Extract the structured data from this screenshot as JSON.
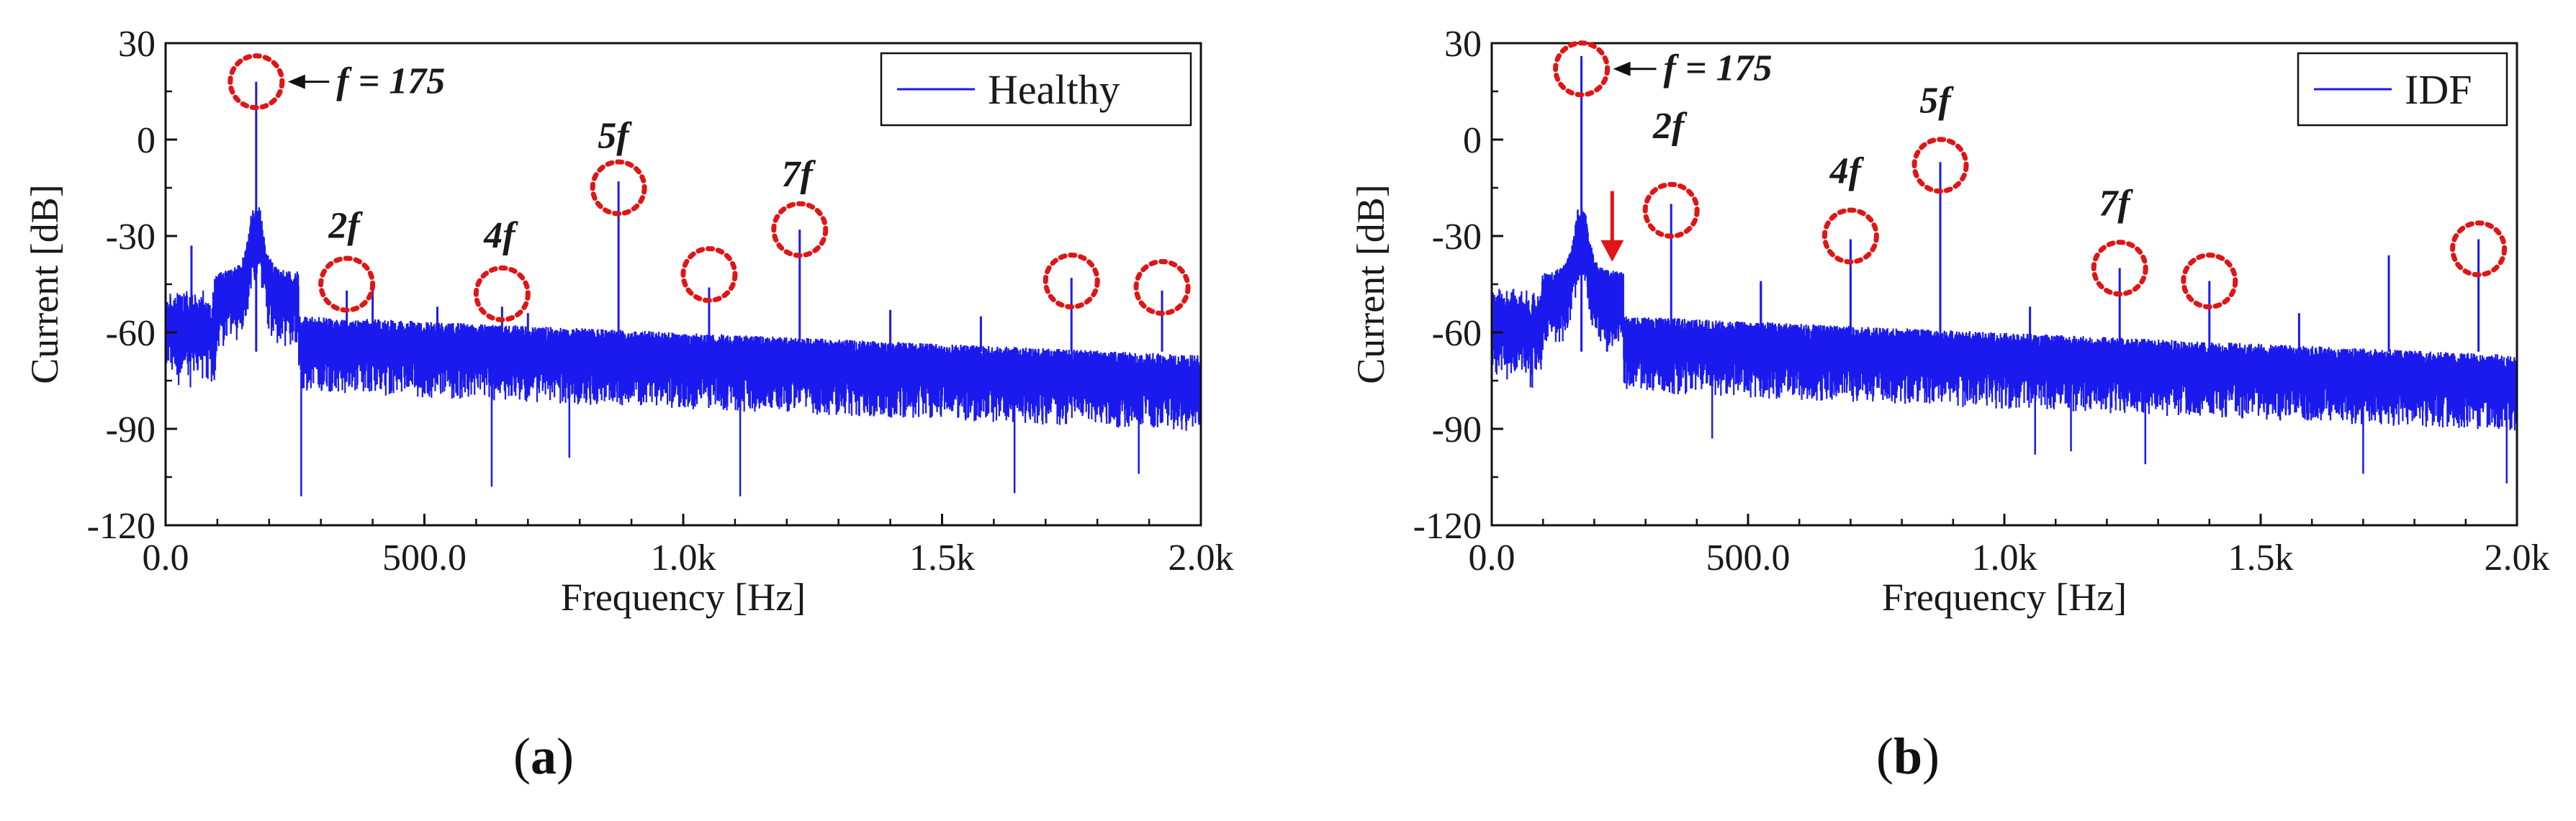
{
  "colors": {
    "trace": "#1a1aee",
    "circle": "#e01515",
    "arrow": "#e01515",
    "axis": "#111111"
  },
  "chart_data": [
    {
      "type": "line",
      "panel": "a",
      "caption_letter": "a",
      "title": "",
      "xlabel": "Frequency [Hz]",
      "ylabel": "Current [dB]",
      "xlim": [
        0,
        2000
      ],
      "ylim": [
        -120,
        30
      ],
      "xticks": [
        0,
        500,
        1000,
        1500,
        2000
      ],
      "xtick_labels": [
        "0.0",
        "500.0",
        "1.0k",
        "1.5k",
        "2.0k"
      ],
      "yticks": [
        30,
        0,
        -30,
        -60,
        -90,
        -120
      ],
      "ytick_labels": [
        "30",
        "0",
        "-30",
        "-60",
        "-90",
        "-120"
      ],
      "legend": {
        "label": "Healthy",
        "placement": "top-right"
      },
      "noise_floor_db": [
        -60,
        -78
      ],
      "peaks": [
        {
          "x": 50,
          "y": -33
        },
        {
          "x": 175,
          "y": 18
        },
        {
          "x": 350,
          "y": -47
        },
        {
          "x": 400,
          "y": -46
        },
        {
          "x": 525,
          "y": -52
        },
        {
          "x": 650,
          "y": -52
        },
        {
          "x": 700,
          "y": -54
        },
        {
          "x": 875,
          "y": -13
        },
        {
          "x": 1050,
          "y": -46
        },
        {
          "x": 1225,
          "y": -28
        },
        {
          "x": 1400,
          "y": -53
        },
        {
          "x": 1575,
          "y": -55
        },
        {
          "x": 1750,
          "y": -43
        },
        {
          "x": 1925,
          "y": -47
        }
      ],
      "dips": [
        {
          "x": 262,
          "y": -111
        },
        {
          "x": 630,
          "y": -108
        },
        {
          "x": 1110,
          "y": -111
        },
        {
          "x": 1640,
          "y": -110
        },
        {
          "x": 1880,
          "y": -104
        },
        {
          "x": 780,
          "y": -99
        }
      ],
      "circled": [
        {
          "x": 175,
          "y": 18
        },
        {
          "x": 350,
          "y": -45
        },
        {
          "x": 650,
          "y": -48
        },
        {
          "x": 875,
          "y": -15
        },
        {
          "x": 1050,
          "y": -42
        },
        {
          "x": 1225,
          "y": -28
        },
        {
          "x": 1750,
          "y": -44
        },
        {
          "x": 1925,
          "y": -46
        }
      ],
      "annotations": [
        {
          "text": "f = 175",
          "x": 330,
          "y": 18,
          "arrow_to": [
            175,
            18
          ]
        },
        {
          "text": "2f",
          "x": 345,
          "y": -27
        },
        {
          "text": "4f",
          "x": 645,
          "y": -30
        },
        {
          "text": "5f",
          "x": 865,
          "y": 1
        },
        {
          "text": "7f",
          "x": 1220,
          "y": -11
        }
      ],
      "red_arrow": null
    },
    {
      "type": "line",
      "panel": "b",
      "caption_letter": "b",
      "title": "",
      "xlabel": "Frequency [Hz]",
      "ylabel": "Current [dB]",
      "xlim": [
        0,
        2000
      ],
      "ylim": [
        -120,
        30
      ],
      "xticks": [
        0,
        500,
        1000,
        1500,
        2000
      ],
      "xtick_labels": [
        "0.0",
        "500.0",
        "1.0k",
        "1.5k",
        "2.0k"
      ],
      "yticks": [
        30,
        0,
        -30,
        -60,
        -90,
        -120
      ],
      "ytick_labels": [
        "30",
        "0",
        "-30",
        "-60",
        "-90",
        "-120"
      ],
      "legend": {
        "label": "IDF",
        "placement": "top-right"
      },
      "noise_floor_db": [
        -60,
        -78
      ],
      "peaks": [
        {
          "x": 175,
          "y": 26
        },
        {
          "x": 225,
          "y": -44
        },
        {
          "x": 350,
          "y": -20
        },
        {
          "x": 525,
          "y": -44
        },
        {
          "x": 525,
          "y": -45
        },
        {
          "x": 700,
          "y": -31
        },
        {
          "x": 875,
          "y": -7
        },
        {
          "x": 1050,
          "y": -52
        },
        {
          "x": 1225,
          "y": -40
        },
        {
          "x": 1400,
          "y": -44
        },
        {
          "x": 1575,
          "y": -54
        },
        {
          "x": 1750,
          "y": -36
        },
        {
          "x": 1925,
          "y": -31
        }
      ],
      "dips": [
        {
          "x": 1060,
          "y": -98
        },
        {
          "x": 1130,
          "y": -97
        },
        {
          "x": 1700,
          "y": -104
        },
        {
          "x": 1980,
          "y": -107
        },
        {
          "x": 430,
          "y": -93
        },
        {
          "x": 1275,
          "y": -101
        }
      ],
      "circled": [
        {
          "x": 175,
          "y": 22
        },
        {
          "x": 350,
          "y": -22
        },
        {
          "x": 700,
          "y": -30
        },
        {
          "x": 875,
          "y": -8
        },
        {
          "x": 1225,
          "y": -40
        },
        {
          "x": 1400,
          "y": -44
        },
        {
          "x": 1925,
          "y": -34
        }
      ],
      "annotations": [
        {
          "text": "f = 175",
          "x": 335,
          "y": 22,
          "arrow_to": [
            175,
            22
          ]
        },
        {
          "text": "2f",
          "x": 345,
          "y": 4
        },
        {
          "text": "4f",
          "x": 690,
          "y": -10
        },
        {
          "text": "5f",
          "x": 865,
          "y": 12
        },
        {
          "text": "7f",
          "x": 1215,
          "y": -20
        }
      ],
      "red_arrow": {
        "x": 235,
        "y_from": -16,
        "y_to": -38
      }
    }
  ]
}
